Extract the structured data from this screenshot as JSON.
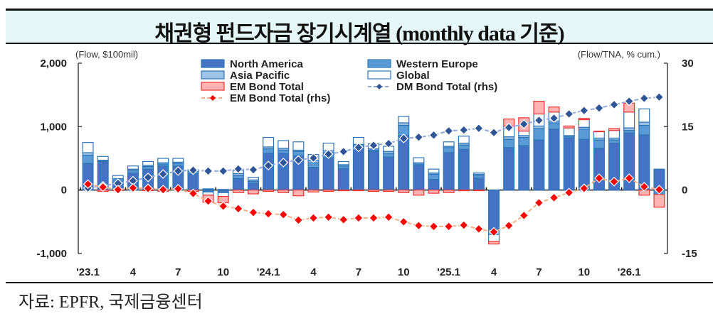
{
  "header": {
    "title": "채권형 펀드자금 장기시계열 (monthly data 기준)"
  },
  "footer": {
    "source": "자료: EPFR,  국제금융센터"
  },
  "chart_data": {
    "type": "bar",
    "title": "채권형 펀드자금 장기시계열 (monthly data 기준)",
    "left_axis": {
      "label": "(Flow, $100mil)",
      "ylim": [
        -1000,
        2000
      ],
      "ticks": [
        -1000,
        0,
        1000,
        2000
      ],
      "tick_labels": [
        "-1,000",
        "0",
        "1,000",
        "2,000"
      ]
    },
    "right_axis": {
      "label": "(Flow/TNA, % cum.)",
      "ylim": [
        -15,
        30
      ],
      "ticks": [
        -15,
        0,
        15,
        30
      ],
      "tick_labels": [
        "-15",
        "0",
        "15",
        "30"
      ]
    },
    "x_tick_labels": [
      "'23.1",
      "4",
      "7",
      "10",
      "'24.1",
      "4",
      "7",
      "10",
      "'25.1",
      "4",
      "7",
      "10",
      "'26.1"
    ],
    "x_tick_every": 3,
    "months": [
      "2023-01",
      "2023-02",
      "2023-03",
      "2023-04",
      "2023-05",
      "2023-06",
      "2023-07",
      "2023-08",
      "2023-09",
      "2023-10",
      "2023-11",
      "2023-12",
      "2024-01",
      "2024-02",
      "2024-03",
      "2024-04",
      "2024-05",
      "2024-06",
      "2024-07",
      "2024-08",
      "2024-09",
      "2024-10",
      "2024-11",
      "2024-12",
      "2025-01",
      "2025-02",
      "2025-03",
      "2025-04",
      "2025-05",
      "2025-06",
      "2025-07",
      "2025-08",
      "2025-09",
      "2025-10",
      "2025-11",
      "2025-12",
      "2026-01",
      "2026-02",
      "2026-03"
    ],
    "legend": [
      {
        "name": "North America",
        "type": "bar",
        "color": "#4472c4"
      },
      {
        "name": "Western Europe",
        "type": "bar",
        "color": "#5b9bd5"
      },
      {
        "name": "Asia Pacific",
        "type": "bar",
        "color": "#9dc3e6"
      },
      {
        "name": "Global",
        "type": "bar",
        "color": "#ffffff"
      },
      {
        "name": "EM Bond Total",
        "type": "bar",
        "color": "#ffb3b3"
      },
      {
        "name": "DM Bond Total (rhs)",
        "type": "line",
        "color": "#2f5597"
      },
      {
        "name": "EM Bond Total (rhs)",
        "type": "line",
        "color": "#ff0000"
      }
    ],
    "series": [
      {
        "name": "North America",
        "axis": "left",
        "values": [
          420,
          450,
          130,
          270,
          330,
          380,
          380,
          260,
          -30,
          -40,
          180,
          110,
          580,
          580,
          540,
          360,
          510,
          340,
          670,
          610,
          520,
          860,
          390,
          170,
          590,
          640,
          190,
          -620,
          670,
          700,
          790,
          960,
          820,
          800,
          660,
          740,
          900,
          870,
          330
        ]
      },
      {
        "name": "Western Europe",
        "axis": "left",
        "values": [
          130,
          10,
          30,
          40,
          40,
          30,
          40,
          40,
          10,
          0,
          50,
          30,
          70,
          50,
          70,
          70,
          80,
          40,
          30,
          20,
          60,
          160,
          20,
          80,
          80,
          70,
          40,
          0,
          130,
          130,
          180,
          100,
          20,
          160,
          130,
          50,
          40,
          150,
          -50
        ]
      },
      {
        "name": "Asia Pacific",
        "axis": "left",
        "values": [
          40,
          10,
          20,
          20,
          20,
          20,
          20,
          20,
          10,
          10,
          30,
          20,
          30,
          30,
          20,
          40,
          30,
          20,
          20,
          20,
          30,
          40,
          20,
          20,
          20,
          30,
          20,
          -80,
          40,
          30,
          40,
          30,
          20,
          30,
          30,
          30,
          40,
          50,
          -20
        ]
      },
      {
        "name": "Global",
        "axis": "left",
        "values": [
          160,
          60,
          50,
          50,
          60,
          70,
          60,
          0,
          -50,
          -60,
          50,
          40,
          150,
          120,
          130,
          90,
          120,
          50,
          110,
          80,
          80,
          100,
          80,
          60,
          70,
          110,
          20,
          -110,
          170,
          70,
          190,
          140,
          120,
          120,
          100,
          120,
          250,
          210,
          0
        ]
      },
      {
        "name": "EM Bond Total",
        "axis": "left",
        "values": [
          0,
          -20,
          -10,
          0,
          -10,
          -20,
          0,
          -20,
          -110,
          -100,
          -40,
          -60,
          -20,
          -40,
          -90,
          -30,
          -20,
          -10,
          -10,
          -20,
          -20,
          -40,
          -80,
          -50,
          -40,
          -10,
          -10,
          -40,
          110,
          210,
          200,
          80,
          30,
          20,
          10,
          30,
          140,
          -80,
          -200
        ]
      },
      {
        "name": "DM Bond Total (rhs)",
        "axis": "right",
        "values": [
          0.5,
          1.0,
          1.6,
          2.2,
          3.0,
          3.8,
          4.5,
          4.7,
          4.5,
          4.5,
          5.0,
          4.8,
          5.8,
          6.5,
          7.1,
          7.6,
          8.5,
          9.1,
          10.1,
          10.6,
          11.0,
          12.2,
          12.5,
          13.0,
          14.0,
          14.2,
          14.6,
          13.6,
          14.8,
          15.6,
          16.5,
          17.0,
          18.0,
          18.8,
          19.4,
          20.2,
          21.0,
          21.7,
          22.0
        ]
      },
      {
        "name": "EM Bond Total (rhs)",
        "axis": "right",
        "values": [
          1.4,
          0.7,
          0.1,
          0.5,
          0.4,
          0.1,
          0.3,
          -0.8,
          -2.6,
          -3.8,
          -4.4,
          -5.3,
          -5.6,
          -5.8,
          -7.1,
          -6.6,
          -6.4,
          -7.0,
          -6.6,
          -6.6,
          -6.4,
          -7.5,
          -8.4,
          -8.6,
          -8.6,
          -8.3,
          -9.2,
          -9.9,
          -8.4,
          -6.0,
          -3.0,
          -1.8,
          -0.6,
          0.4,
          2.8,
          2.0,
          2.8,
          0.8,
          0.1
        ]
      }
    ]
  }
}
